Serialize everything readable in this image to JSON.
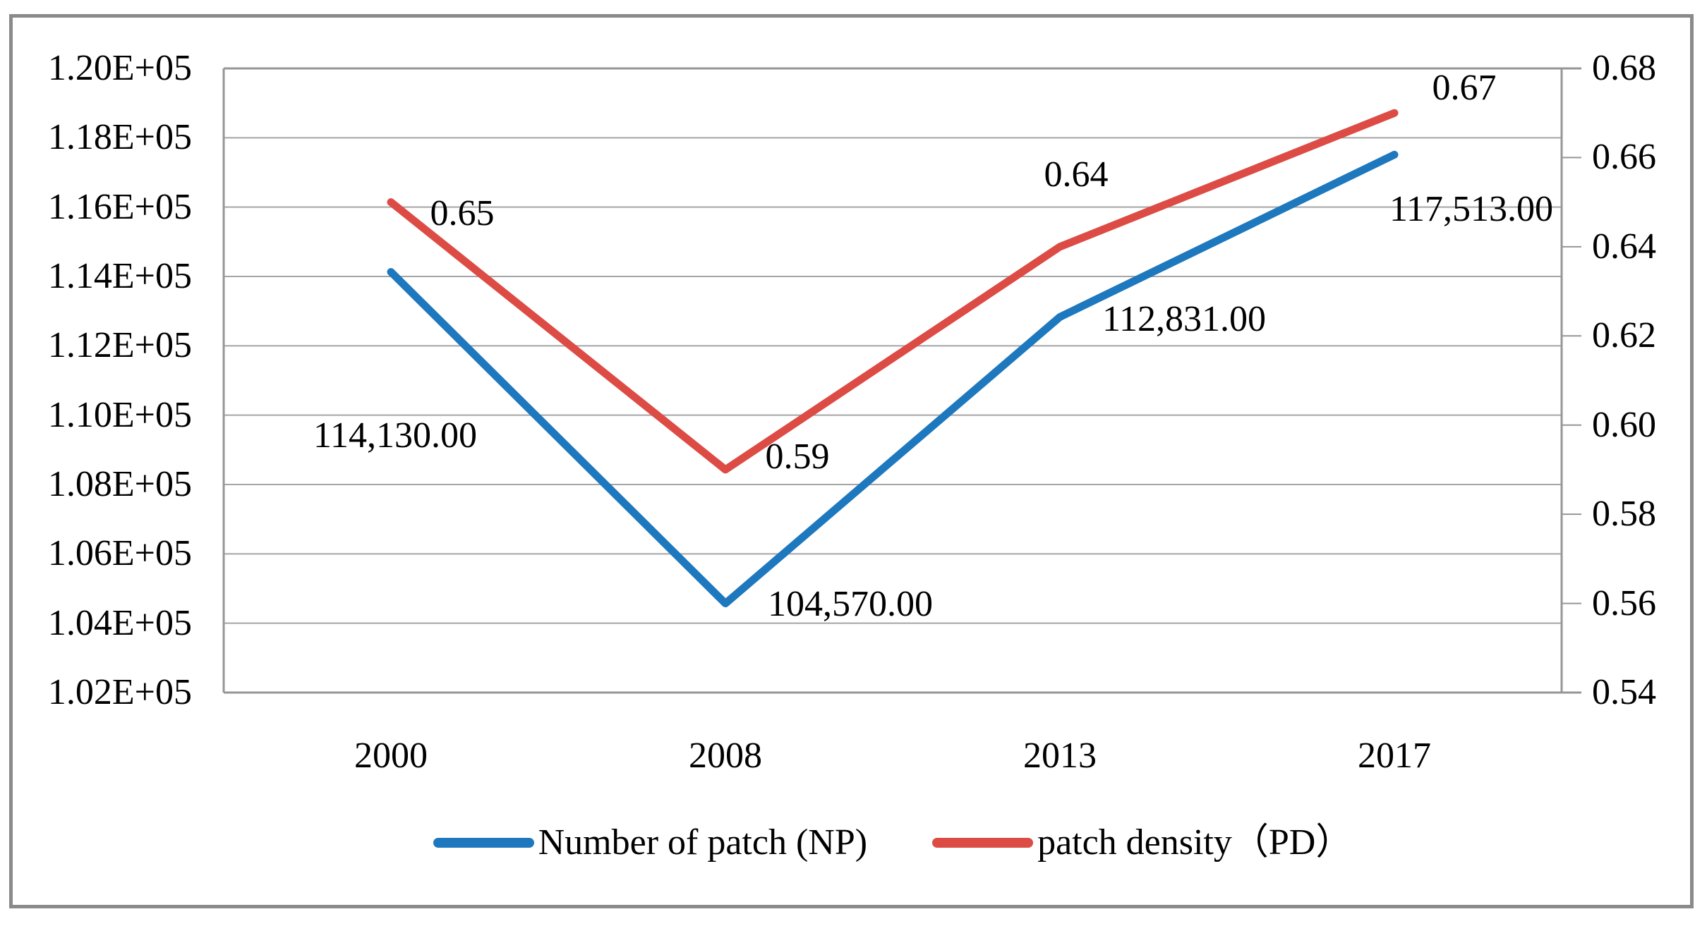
{
  "chart_data": {
    "type": "line",
    "title": "",
    "categories": [
      "2000",
      "2008",
      "2013",
      "2017"
    ],
    "series": [
      {
        "name": "Number of patch (NP)",
        "axis": "left",
        "color": "#1e78be",
        "values": [
          114130,
          104570,
          112831,
          117513
        ],
        "data_labels": [
          "114,130.00",
          "104,570.00",
          "112,831.00",
          "117,513.00"
        ]
      },
      {
        "name": "patch density（PD）",
        "axis": "right",
        "color": "#dd4b45",
        "values": [
          0.65,
          0.59,
          0.64,
          0.67
        ],
        "data_labels": [
          "0.65",
          "0.59",
          "0.64",
          "0.67"
        ]
      }
    ],
    "left_axis": {
      "min": 102000,
      "max": 120000,
      "step": 2000,
      "format": "scientific",
      "tick_labels": [
        "1.20E+05",
        "1.18E+05",
        "1.16E+05",
        "1.14E+05",
        "1.12E+05",
        "1.10E+05",
        "1.08E+05",
        "1.06E+05",
        "1.04E+05",
        "1.02E+05"
      ]
    },
    "right_axis": {
      "min": 0.54,
      "max": 0.68,
      "step": 0.02,
      "tick_labels": [
        "0.68",
        "0.66",
        "0.64",
        "0.62",
        "0.60",
        "0.58",
        "0.56",
        "0.54"
      ]
    },
    "grid": "horizontal",
    "legend_position": "bottom",
    "legend": [
      {
        "label": "Number of patch (NP)",
        "color": "#1e78be"
      },
      {
        "label": "patch density（PD）",
        "color": "#dd4b45"
      }
    ]
  },
  "colors": {
    "np_line": "#1e78be",
    "pd_line": "#dd4b45",
    "gridline": "#a5a5a5",
    "axis": "#969696",
    "border": "#8a8a8a",
    "text": "#000000",
    "background": "#ffffff"
  }
}
